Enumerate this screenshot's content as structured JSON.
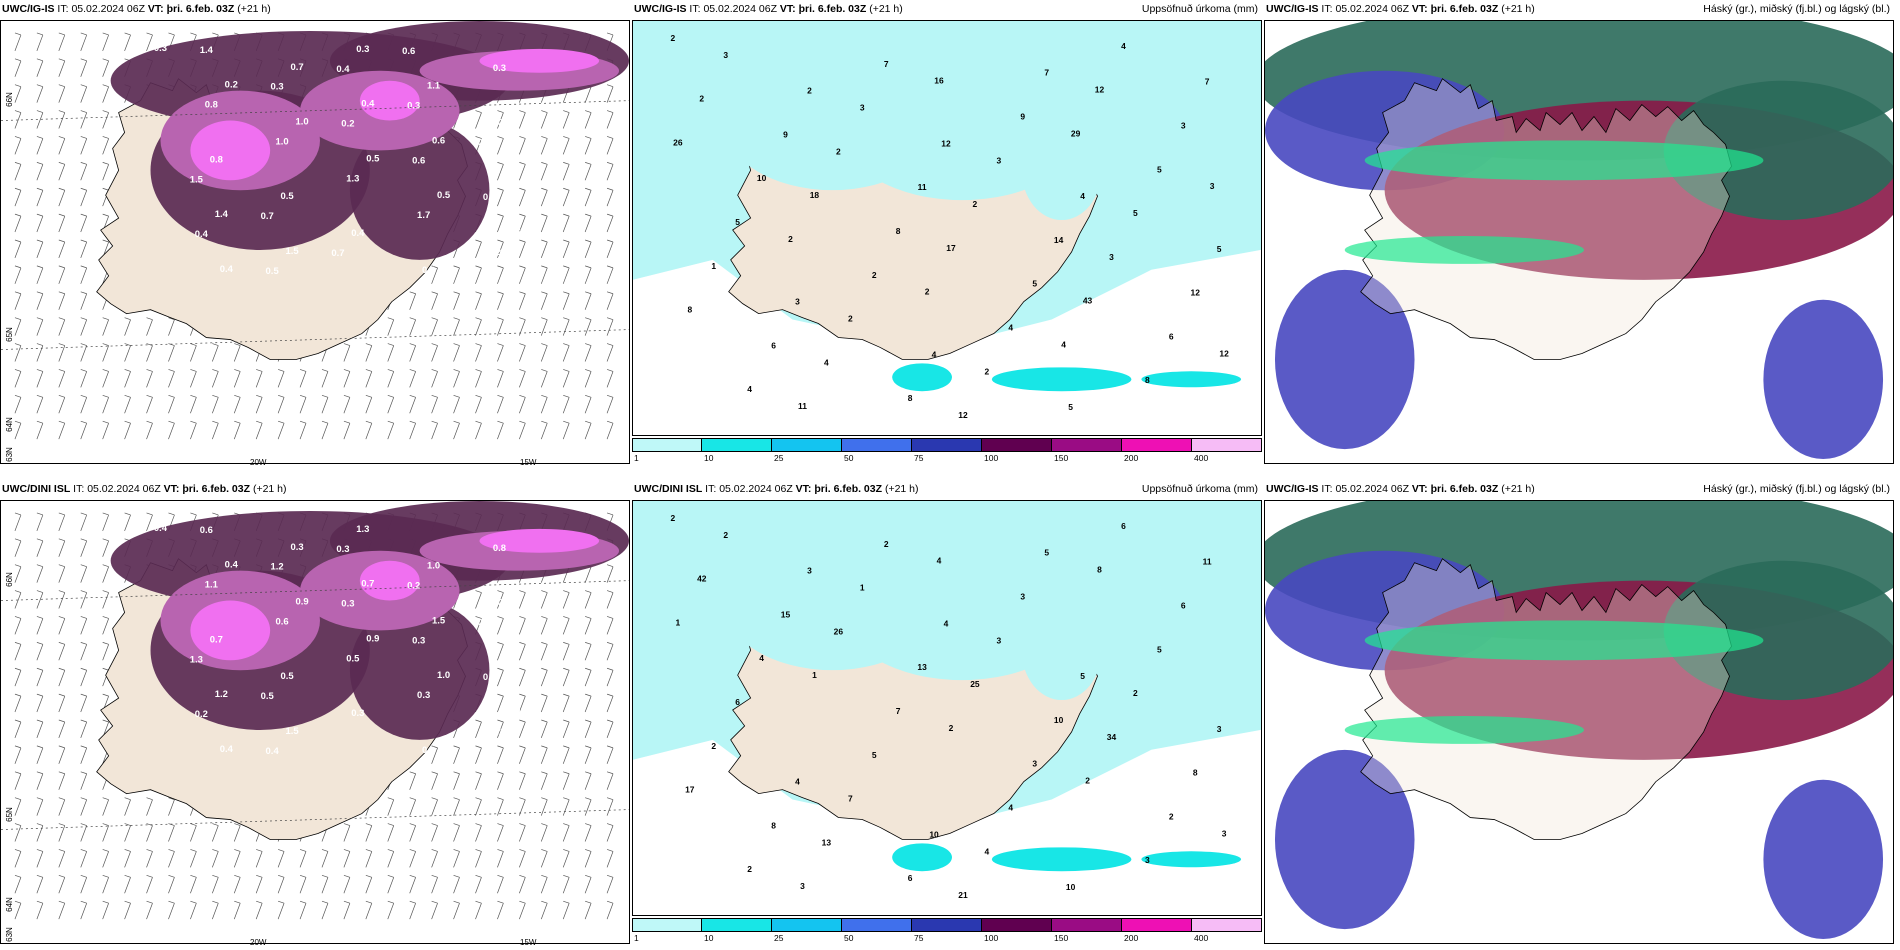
{
  "panels": [
    {
      "row": 0,
      "col": 0,
      "model": "UWC/IG-IS",
      "it_label": "IT:",
      "it": "05.02.2024 06Z",
      "vt_label": "VT:",
      "vt": "þri. 6.feb. 03Z",
      "lead": "(+21 h)",
      "right_title": "",
      "type": "snow",
      "values": [
        "0.3",
        "0.2",
        "1.0",
        "0.5",
        "0.5",
        "0.6",
        "0.4",
        "0.7",
        "0.4",
        "0.6",
        "0.8",
        "1.4",
        "1.5",
        "0.3",
        "1.1",
        "0.9",
        "0.8",
        "0.5",
        "0.4",
        "0.6",
        "0.3",
        "0.8",
        "1.0",
        "1.3",
        "1.7",
        "1.2",
        "1.4",
        "0.3",
        "0.2",
        "0.6",
        "0.4",
        "0.4",
        "0.5",
        "0.4",
        "0.3",
        "0.2",
        "1.5",
        "0.7",
        "0.7",
        "0.6"
      ],
      "axis_labels": [
        "66N",
        "65N",
        "64N",
        "63N",
        "20W",
        "15W"
      ]
    },
    {
      "row": 0,
      "col": 1,
      "model": "UWC/IG-IS",
      "it_label": "IT:",
      "it": "05.02.2024 06Z",
      "vt_label": "VT:",
      "vt": "þri. 6.feb. 03Z",
      "lead": "(+21 h)",
      "right_title": "Uppsöfnuð úrkoma (mm)",
      "type": "precip",
      "values": [
        "2",
        "2",
        "12",
        "4",
        "5",
        "3",
        "4",
        "5",
        "7",
        "9",
        "11",
        "14",
        "12",
        "6",
        "8",
        "7",
        "3",
        "10",
        "8",
        "5",
        "6",
        "4",
        "7",
        "9",
        "5",
        "5",
        "2",
        "4",
        "8",
        "3",
        "3",
        "3",
        "5",
        "1",
        "2",
        "2",
        "4",
        "2",
        "2",
        "2",
        "3",
        "8",
        "4",
        "12",
        "12",
        "26",
        "18",
        "17",
        "43",
        "12",
        "11",
        "16",
        "29",
        "3",
        "2",
        "2",
        "4"
      ],
      "axis_labels": [
        "65N",
        "66N"
      ],
      "colorbar": {
        "colors": [
          "#bff8f8",
          "#18e6e6",
          "#14c4f0",
          "#4070ec",
          "#2a38b0",
          "#600050",
          "#9a0c84",
          "#ee10b4",
          "#f6bcf6"
        ],
        "ticks": [
          "1",
          "10",
          "25",
          "50",
          "75",
          "100",
          "150",
          "200",
          "400"
        ]
      }
    },
    {
      "row": 0,
      "col": 2,
      "model": "UWC/IG-IS",
      "it_label": "IT:",
      "it": "05.02.2024 06Z",
      "vt_label": "VT:",
      "vt": "þri. 6.feb. 03Z",
      "lead": "(+21 h)",
      "right_title": "Háský (gr.), miðský (fj.bl.) og lágský (bl.)",
      "type": "cloud"
    },
    {
      "row": 1,
      "col": 0,
      "model": "UWC/DINI ISL",
      "it_label": "IT:",
      "it": "05.02.2024 06Z",
      "vt_label": "VT:",
      "vt": "þri. 6.feb. 03Z",
      "lead": "(+21 h)",
      "right_title": "",
      "type": "snow",
      "values": [
        "0.4",
        "0.4",
        "0.9",
        "0.9",
        "1.0",
        "0.4",
        "0.4",
        "0.3",
        "0.7",
        "1.5",
        "1.7",
        "1.2",
        "1.5",
        "1.3",
        "1.0",
        "0.8",
        "0.7",
        "0.5",
        "0.3",
        "0.9",
        "0.8",
        "1.1",
        "0.6",
        "0.5",
        "0.3",
        "0.7",
        "0.6",
        "1.2",
        "0.3",
        "0.3",
        "0.5",
        "0.2",
        "0.4",
        "0.3",
        "0.2",
        "0.2",
        "1.3",
        "0.5"
      ],
      "axis_labels": [
        "66N",
        "65N",
        "64N",
        "63N",
        "20W",
        "15W"
      ]
    },
    {
      "row": 1,
      "col": 1,
      "model": "UWC/DINI ISL",
      "it_label": "IT:",
      "it": "05.02.2024 06Z",
      "vt_label": "VT:",
      "vt": "þri. 6.feb. 03Z",
      "lead": "(+21 h)",
      "right_title": "Uppsöfnuð úrkoma (mm)",
      "type": "precip",
      "values": [
        "2",
        "3",
        "4",
        "5",
        "3",
        "4",
        "10",
        "10",
        "11",
        "15",
        "13",
        "10",
        "8",
        "8",
        "6",
        "5",
        "6",
        "4",
        "7",
        "3",
        "2",
        "2",
        "2",
        "3",
        "5",
        "6",
        "5",
        "4",
        "3",
        "2",
        "1",
        "3",
        "2",
        "2",
        "7",
        "4",
        "6",
        "42",
        "26",
        "25",
        "34",
        "17",
        "13",
        "21",
        "8",
        "1",
        "1",
        "2",
        "2",
        "3",
        "3",
        "4"
      ],
      "axis_labels": [
        "65N",
        "66N"
      ],
      "colorbar": {
        "colors": [
          "#bff8f8",
          "#18e6e6",
          "#14c4f0",
          "#4070ec",
          "#2a38b0",
          "#600050",
          "#9a0c84",
          "#ee10b4",
          "#f6bcf6"
        ],
        "ticks": [
          "1",
          "10",
          "25",
          "50",
          "75",
          "100",
          "150",
          "200",
          "400"
        ]
      }
    },
    {
      "row": 1,
      "col": 2,
      "model": "UWC/IG-IS",
      "it_label": "IT:",
      "it": "05.02.2024 06Z",
      "vt_label": "VT:",
      "vt": "þri. 6.feb. 03Z",
      "lead": "(+21 h)",
      "right_title": "Háský (gr.), miðský (fj.bl.) og lágský (bl.)",
      "type": "cloud"
    }
  ],
  "colors": {
    "land": "#f2e6d8",
    "snow_light": "#b864b0",
    "snow_mid": "#8a3a82",
    "snow_dark": "#5a2a52",
    "snow_bright": "#f070f0",
    "precip_light": "#b8f6f6",
    "precip_mid": "#18e6e6",
    "cloud_high": "#2a6a5a",
    "cloud_mid": "#8a1848",
    "cloud_low": "#4848c0",
    "cloud_edge": "#20e890"
  }
}
